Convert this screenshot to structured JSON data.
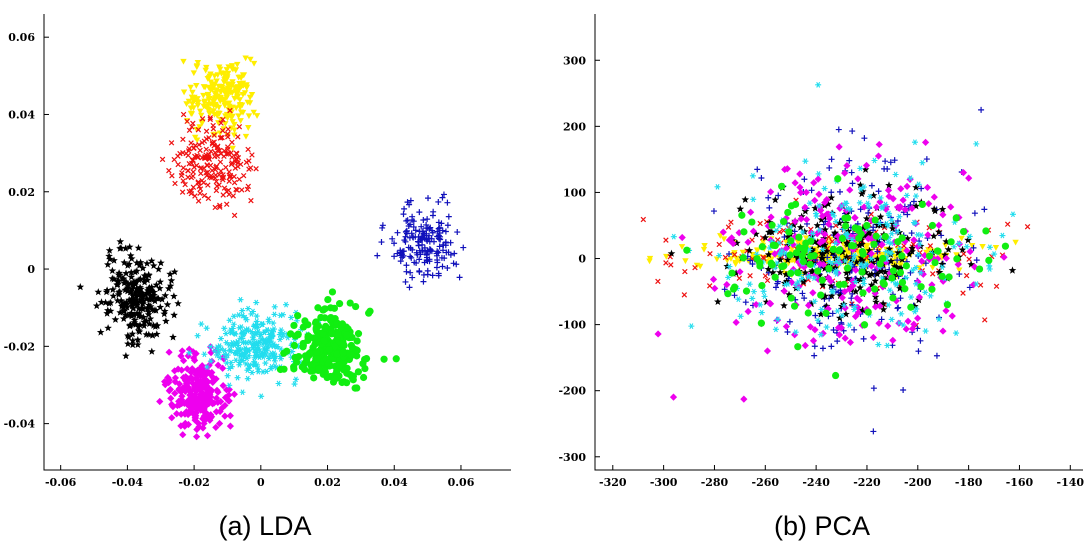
{
  "figure": {
    "left_caption": "(a) LDA",
    "right_caption": "(b) PCA"
  },
  "chart_data": [
    {
      "type": "scatter",
      "title": "",
      "caption": "(a) LDA",
      "xlabel": "",
      "ylabel": "",
      "xlim": [
        -0.065,
        0.075
      ],
      "ylim": [
        -0.052,
        0.066
      ],
      "xticks": [
        -0.06,
        -0.04,
        -0.02,
        0,
        0.02,
        0.04,
        0.06
      ],
      "xtick_labels": [
        "-0.06",
        "-0.04",
        "-0.02",
        "0",
        "0.02",
        "0.04",
        "0.06"
      ],
      "yticks": [
        -0.04,
        -0.02,
        0,
        0.02,
        0.04,
        0.06
      ],
      "ytick_labels": [
        "-0.04",
        "-0.02",
        "0",
        "0.02",
        "0.04",
        "0.06"
      ],
      "grid": false,
      "legend": "none",
      "series": [
        {
          "marker": "triangle-down",
          "color": "#ffee00",
          "points_per_cluster": 220,
          "center": [
            -0.012,
            0.045
          ],
          "spread": [
            0.005,
            0.0045
          ]
        },
        {
          "marker": "x",
          "color": "#ee1111",
          "points_per_cluster": 200,
          "center": [
            -0.015,
            0.027
          ],
          "spread": [
            0.006,
            0.005
          ]
        },
        {
          "marker": "plus",
          "color": "#1111bb",
          "points_per_cluster": 180,
          "center": [
            0.049,
            0.007
          ],
          "spread": [
            0.005,
            0.0045
          ]
        },
        {
          "marker": "star",
          "color": "#000000",
          "points_per_cluster": 240,
          "center": [
            -0.037,
            -0.007
          ],
          "spread": [
            0.005,
            0.0055
          ]
        },
        {
          "marker": "diamond",
          "color": "#ee00ee",
          "points_per_cluster": 250,
          "center": [
            -0.019,
            -0.032
          ],
          "spread": [
            0.0045,
            0.0045
          ]
        },
        {
          "marker": "asterisk",
          "color": "#22ddee",
          "points_per_cluster": 260,
          "center": [
            -0.002,
            -0.02
          ],
          "spread": [
            0.0065,
            0.0045
          ]
        },
        {
          "marker": "circle",
          "color": "#11ee11",
          "points_per_cluster": 260,
          "center": [
            0.02,
            -0.02
          ],
          "spread": [
            0.0055,
            0.0045
          ]
        }
      ]
    },
    {
      "type": "scatter",
      "title": "",
      "caption": "(b) PCA",
      "xlabel": "",
      "ylabel": "",
      "xlim": [
        -327,
        -135
      ],
      "ylim": [
        -320,
        370
      ],
      "xticks": [
        -320,
        -300,
        -280,
        -260,
        -240,
        -220,
        -200,
        -180,
        -160,
        -140
      ],
      "xtick_labels": [
        "-320",
        "-300",
        "-280",
        "-260",
        "-240",
        "-220",
        "-200",
        "-180",
        "-160",
        "-140"
      ],
      "yticks": [
        -300,
        -200,
        -100,
        0,
        100,
        200,
        300
      ],
      "ytick_labels": [
        "-300",
        "-200",
        "-100",
        "0",
        "100",
        "200",
        "300"
      ],
      "grid": false,
      "legend": "none",
      "series": [
        {
          "marker": "triangle-down",
          "color": "#ffee00",
          "points_per_cluster": 260,
          "center": [
            -232,
            5
          ],
          "spread": [
            24,
            12
          ]
        },
        {
          "marker": "x",
          "color": "#ee1111",
          "points_per_cluster": 120,
          "center": [
            -232,
            5
          ],
          "spread": [
            32,
            35
          ]
        },
        {
          "marker": "plus",
          "color": "#1111bb",
          "points_per_cluster": 220,
          "center": [
            -225,
            0
          ],
          "spread": [
            22,
            85
          ]
        },
        {
          "marker": "star",
          "color": "#000000",
          "points_per_cluster": 250,
          "center": [
            -228,
            5
          ],
          "spread": [
            22,
            45
          ]
        },
        {
          "marker": "diamond",
          "color": "#ee00ee",
          "points_per_cluster": 230,
          "center": [
            -228,
            0
          ],
          "spread": [
            24,
            75
          ]
        },
        {
          "marker": "asterisk",
          "color": "#22ddee",
          "points_per_cluster": 220,
          "center": [
            -228,
            0
          ],
          "spread": [
            25,
            65
          ]
        },
        {
          "marker": "circle",
          "color": "#11ee11",
          "points_per_cluster": 120,
          "center": [
            -230,
            0
          ],
          "spread": [
            28,
            45
          ]
        }
      ]
    }
  ]
}
